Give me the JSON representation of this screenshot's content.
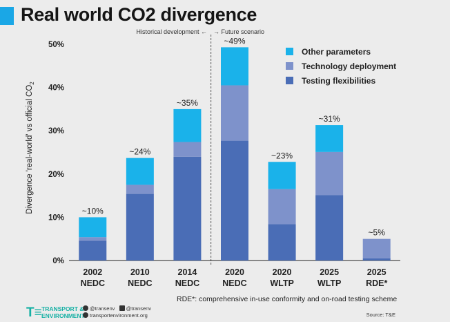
{
  "title": "Real world CO2 divergence",
  "colors": {
    "title_band": "#1aa7e6",
    "other_parameters": "#1ab2ea",
    "technology_deployment": "#7e92cb",
    "testing_flexibilities": "#4a6db6",
    "axis": "#222222",
    "divider": "#333333",
    "brand": "#15b0a4"
  },
  "divider_labels": {
    "left": "Historical development ←",
    "right": "→ Future scenario"
  },
  "chart_data": {
    "type": "bar",
    "stacked": true,
    "categories": [
      [
        "2002",
        "NEDC"
      ],
      [
        "2010",
        "NEDC"
      ],
      [
        "2014",
        "NEDC"
      ],
      [
        "2020",
        "NEDC"
      ],
      [
        "2020",
        "WLTP"
      ],
      [
        "2025",
        "WLTP"
      ],
      [
        "2025",
        "RDE*"
      ]
    ],
    "series": [
      {
        "name": "Testing flexibilities",
        "color_key": "testing_flexibilities",
        "values": [
          4.6,
          15.4,
          24.0,
          27.7,
          8.4,
          15.1,
          0.5
        ]
      },
      {
        "name": "Technology deployment",
        "color_key": "technology_deployment",
        "values": [
          0.8,
          2.1,
          3.4,
          12.8,
          8.1,
          10.0,
          4.5
        ]
      },
      {
        "name": "Other parameters",
        "color_key": "other_parameters",
        "values": [
          4.6,
          6.2,
          7.6,
          8.8,
          6.3,
          6.2,
          0.0
        ]
      }
    ],
    "totals_labels": [
      "~10%",
      "~24%",
      "~35%",
      "~49%",
      "~23%",
      "~31%",
      "~5%"
    ],
    "ylabel": "Divergence 'real-world' vs official CO",
    "ylabel_subscript": "2",
    "ylim": [
      0,
      50
    ],
    "yticks": [
      0,
      10,
      20,
      30,
      40,
      50
    ],
    "ytick_labels": [
      "0%",
      "10%",
      "20%",
      "30%",
      "40%",
      "50%"
    ],
    "legend_order": [
      "Other parameters",
      "Technology deployment",
      "Testing flexibilities"
    ],
    "legend_position": "top-right",
    "divider_after_category": 2
  },
  "footnote": "RDE*: comprehensive in-use conformity and on-road testing scheme",
  "source": "Source: T&E",
  "footer": {
    "logo_mark": "T≡",
    "logo_line1": "TRANSPORT &",
    "logo_line2": "ENVIRONMENT",
    "twitter": "@transenv",
    "facebook": "@transenv",
    "website": "transportenvironment.org"
  }
}
